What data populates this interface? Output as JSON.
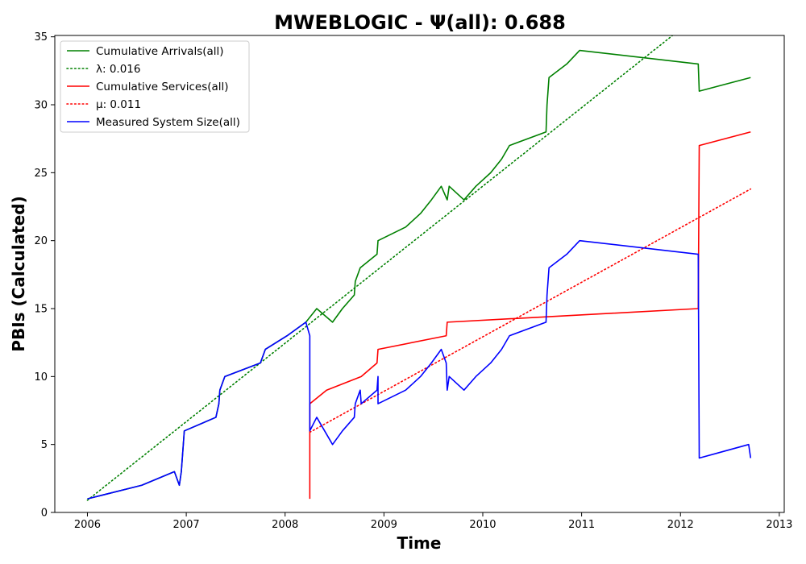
{
  "chart_data": {
    "type": "line",
    "title": "MWEBLOGIC -  Ψ(all): 0.688",
    "xlabel": "Time",
    "ylabel": "PBIs (Calculated)",
    "xlim": [
      2005.67,
      2013.05
    ],
    "ylim": [
      0,
      35.1
    ],
    "xticks": [
      2006,
      2007,
      2008,
      2009,
      2010,
      2011,
      2012,
      2013
    ],
    "yticks": [
      0,
      5,
      10,
      15,
      20,
      25,
      30,
      35
    ],
    "grid": false,
    "legend_position": "top-left",
    "series": [
      {
        "name": "Cumulative Arrivals(all)",
        "style": "solid",
        "color": "#008000",
        "points": [
          [
            2006.0,
            1
          ],
          [
            2006.55,
            2
          ],
          [
            2006.88,
            3
          ],
          [
            2006.93,
            2
          ],
          [
            2006.95,
            3
          ],
          [
            2006.96,
            4
          ],
          [
            2006.97,
            5
          ],
          [
            2006.98,
            6
          ],
          [
            2007.3,
            7
          ],
          [
            2007.33,
            8
          ],
          [
            2007.34,
            9
          ],
          [
            2007.39,
            10
          ],
          [
            2007.75,
            11
          ],
          [
            2007.8,
            12
          ],
          [
            2008.02,
            13
          ],
          [
            2008.21,
            14
          ],
          [
            2008.32,
            15
          ],
          [
            2008.48,
            14
          ],
          [
            2008.58,
            15
          ],
          [
            2008.7,
            16
          ],
          [
            2008.71,
            17
          ],
          [
            2008.76,
            18
          ],
          [
            2008.93,
            19
          ],
          [
            2008.94,
            20
          ],
          [
            2009.22,
            21
          ],
          [
            2009.37,
            22
          ],
          [
            2009.48,
            23
          ],
          [
            2009.58,
            24
          ],
          [
            2009.64,
            23
          ],
          [
            2009.66,
            24
          ],
          [
            2009.81,
            23
          ],
          [
            2009.93,
            24
          ],
          [
            2010.08,
            25
          ],
          [
            2010.19,
            26
          ],
          [
            2010.27,
            27
          ],
          [
            2010.64,
            28
          ],
          [
            2010.65,
            30
          ],
          [
            2010.66,
            31
          ],
          [
            2010.67,
            32
          ],
          [
            2010.85,
            33
          ],
          [
            2010.98,
            34
          ],
          [
            2012.18,
            33
          ],
          [
            2012.19,
            31
          ],
          [
            2012.71,
            32
          ]
        ]
      },
      {
        "name": "λ: 0.016",
        "style": "dotted",
        "color": "#008000",
        "points": [
          [
            2006.0,
            0.9
          ],
          [
            2011.92,
            35.1
          ]
        ]
      },
      {
        "name": "Cumulative Services(all)",
        "style": "solid",
        "color": "#ff0000",
        "points": [
          [
            2008.25,
            1
          ],
          [
            2008.25,
            8
          ],
          [
            2008.42,
            9
          ],
          [
            2008.77,
            10
          ],
          [
            2008.93,
            11
          ],
          [
            2008.94,
            12
          ],
          [
            2009.63,
            13
          ],
          [
            2009.64,
            14
          ],
          [
            2012.18,
            15
          ],
          [
            2012.19,
            27
          ],
          [
            2012.71,
            28
          ]
        ]
      },
      {
        "name": "μ: 0.011",
        "style": "dotted",
        "color": "#ff0000",
        "points": [
          [
            2008.25,
            5.9
          ],
          [
            2012.71,
            23.8
          ]
        ]
      },
      {
        "name": "Measured System Size(all)",
        "style": "solid",
        "color": "#0000ff",
        "points": [
          [
            2006.0,
            1
          ],
          [
            2006.55,
            2
          ],
          [
            2006.88,
            3
          ],
          [
            2006.93,
            2
          ],
          [
            2006.95,
            3
          ],
          [
            2006.96,
            4
          ],
          [
            2006.97,
            5
          ],
          [
            2006.98,
            6
          ],
          [
            2007.3,
            7
          ],
          [
            2007.33,
            8
          ],
          [
            2007.34,
            9
          ],
          [
            2007.39,
            10
          ],
          [
            2007.75,
            11
          ],
          [
            2007.8,
            12
          ],
          [
            2008.02,
            13
          ],
          [
            2008.21,
            14
          ],
          [
            2008.25,
            13
          ],
          [
            2008.25,
            6
          ],
          [
            2008.32,
            7
          ],
          [
            2008.48,
            5
          ],
          [
            2008.58,
            6
          ],
          [
            2008.7,
            7
          ],
          [
            2008.71,
            8
          ],
          [
            2008.76,
            9
          ],
          [
            2008.77,
            8
          ],
          [
            2008.93,
            9
          ],
          [
            2008.94,
            10
          ],
          [
            2008.94,
            8
          ],
          [
            2009.22,
            9
          ],
          [
            2009.37,
            10
          ],
          [
            2009.48,
            11
          ],
          [
            2009.58,
            12
          ],
          [
            2009.63,
            11
          ],
          [
            2009.64,
            9
          ],
          [
            2009.66,
            10
          ],
          [
            2009.81,
            9
          ],
          [
            2009.93,
            10
          ],
          [
            2010.08,
            11
          ],
          [
            2010.19,
            12
          ],
          [
            2010.27,
            13
          ],
          [
            2010.64,
            14
          ],
          [
            2010.65,
            16
          ],
          [
            2010.66,
            17
          ],
          [
            2010.67,
            18
          ],
          [
            2010.85,
            19
          ],
          [
            2010.98,
            20
          ],
          [
            2012.18,
            19
          ],
          [
            2012.19,
            4
          ],
          [
            2012.69,
            5
          ],
          [
            2012.71,
            4
          ]
        ]
      }
    ]
  }
}
